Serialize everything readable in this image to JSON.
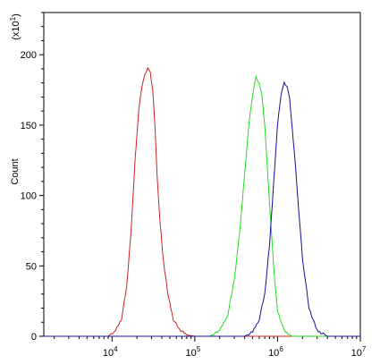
{
  "chart_data": {
    "type": "line",
    "xscale": "log",
    "xlim": [
      1500,
      10000000
    ],
    "ylim": [
      0,
      230
    ],
    "ylabel": "Count",
    "y_multiplier_label": "(x10",
    "y_multiplier_exp": "1",
    "y_multiplier_close": ")",
    "grid": false,
    "legend": "none",
    "x_ticks": [
      {
        "value": 10000,
        "base": "10",
        "exp": "4"
      },
      {
        "value": 100000,
        "base": "10",
        "exp": "5"
      },
      {
        "value": 1000000,
        "base": "10",
        "exp": "6"
      },
      {
        "value": 10000000,
        "base": "10",
        "exp": "7"
      }
    ],
    "y_ticks": [
      {
        "value": 0,
        "label": "0"
      },
      {
        "value": 50,
        "label": "50"
      },
      {
        "value": 100,
        "label": "100"
      },
      {
        "value": 150,
        "label": "150"
      },
      {
        "value": 200,
        "label": "200"
      }
    ],
    "series": [
      {
        "color": "#cc2222",
        "x": [
          9000,
          11000,
          13000,
          15000,
          17000,
          19000,
          21000,
          23000,
          25000,
          27000,
          29000,
          31000,
          33000,
          35000,
          38000,
          42000,
          48000,
          55000,
          65000,
          80000,
          100000
        ],
        "values": [
          0,
          4,
          12,
          35,
          75,
          125,
          160,
          178,
          186,
          191,
          187,
          175,
          150,
          115,
          82,
          52,
          28,
          12,
          5,
          1,
          0
        ]
      },
      {
        "color": "#22dd22",
        "x": [
          150000,
          200000,
          250000,
          300000,
          350000,
          400000,
          450000,
          500000,
          550000,
          600000,
          650000,
          700000,
          800000,
          900000,
          1000000,
          1200000,
          1500000
        ],
        "values": [
          0,
          4,
          15,
          40,
          75,
          115,
          150,
          172,
          184,
          180,
          170,
          150,
          95,
          48,
          18,
          4,
          0
        ]
      },
      {
        "color": "#111199",
        "x": [
          400000,
          500000,
          600000,
          700000,
          800000,
          900000,
          1000000,
          1100000,
          1200000,
          1300000,
          1400000,
          1600000,
          1800000,
          2000000,
          2400000,
          3000000,
          4000000
        ],
        "values": [
          0,
          3,
          12,
          30,
          65,
          110,
          150,
          172,
          180,
          178,
          168,
          130,
          90,
          55,
          20,
          4,
          0
        ]
      }
    ]
  }
}
